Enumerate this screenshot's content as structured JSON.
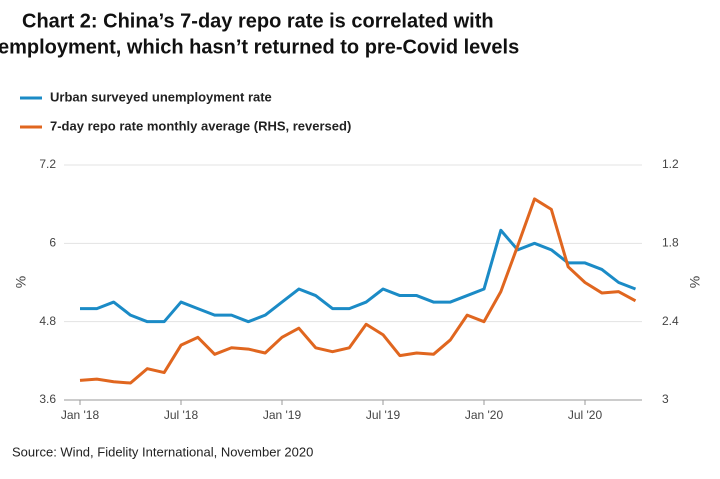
{
  "chart_data": {
    "type": "line",
    "title": [
      "Chart 2: China’s 7-day repo rate is correlated with",
      "employment, which hasn’t returned to pre-Covid levels"
    ],
    "source": "Source: Wind, Fidelity International, November 2020",
    "ylabel": "%",
    "y2label": "%",
    "categories": [
      "Jan '18",
      null,
      null,
      null,
      null,
      null,
      "Jul '18",
      null,
      null,
      null,
      null,
      null,
      "Jan '19",
      null,
      null,
      null,
      null,
      null,
      "Jul '19",
      null,
      null,
      null,
      null,
      null,
      "Jan '20",
      null,
      null,
      null,
      null,
      null,
      "Jul '20",
      null,
      null,
      null
    ],
    "series": [
      {
        "name": "Urban surveyed unemployment rate",
        "color": "#1b8bc6",
        "values": [
          5.0,
          5.0,
          5.1,
          4.9,
          4.8,
          4.8,
          5.1,
          5.0,
          4.9,
          4.9,
          4.8,
          4.9,
          5.1,
          5.3,
          5.2,
          5.0,
          5.0,
          5.1,
          5.3,
          5.2,
          5.2,
          5.1,
          5.1,
          5.2,
          5.3,
          6.2,
          5.9,
          6.0,
          5.9,
          5.7,
          5.7,
          5.6,
          5.4,
          5.3
        ]
      },
      {
        "name": "7-day repo rate monthly average (RHS, reversed)",
        "color": "#e0661f",
        "axis": "y2",
        "values": [
          2.85,
          2.84,
          2.86,
          2.87,
          2.76,
          2.79,
          2.58,
          2.52,
          2.65,
          2.6,
          2.61,
          2.64,
          2.52,
          2.45,
          2.6,
          2.63,
          2.6,
          2.42,
          2.5,
          2.66,
          2.64,
          2.65,
          2.54,
          2.35,
          2.4,
          2.17,
          1.82,
          1.46,
          1.54,
          1.98,
          2.1,
          2.18,
          2.17,
          2.24
        ]
      }
    ],
    "ylim": [
      3.6,
      7.2
    ],
    "yticks": [
      3.6,
      4.8,
      6,
      7.2
    ],
    "y2lim": [
      3,
      1.2
    ],
    "y2ticks": [
      3,
      2.4,
      1.8,
      1.2
    ],
    "y2_reversed": true,
    "grid": true
  }
}
